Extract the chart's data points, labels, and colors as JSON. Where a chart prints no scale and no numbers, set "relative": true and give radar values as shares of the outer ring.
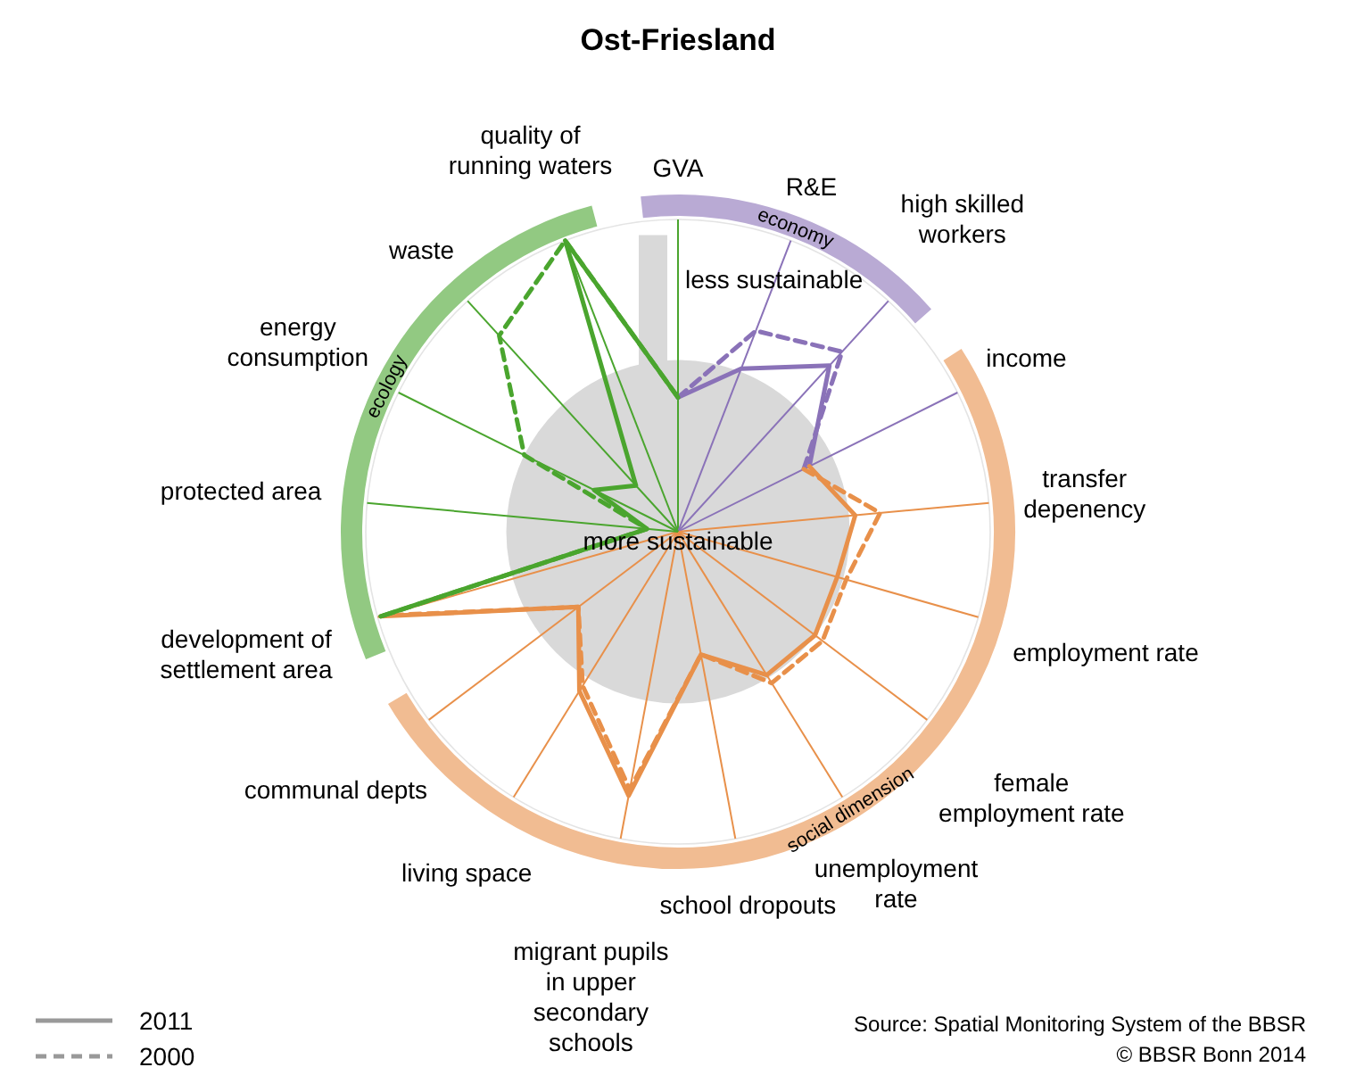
{
  "chart_data": {
    "type": "radar",
    "title": "Ost-Friesland",
    "relative": true,
    "categories": [
      "GVA",
      "R&E",
      "high skilled workers",
      "income",
      "transfer depenency",
      "employment rate",
      "female employment rate",
      "unemployment rate",
      "school dropouts",
      "migrant pupils in upper secondary schools",
      "living space",
      "communal depts",
      "development of settlement area",
      "protected area",
      "energy consumption",
      "waste",
      "quality of running waters"
    ],
    "series": [
      {
        "color": "#8a72b8",
        "line_style": "solid",
        "values": [
          0.43,
          0.56,
          0.72,
          0.47,
          null,
          null,
          null,
          null,
          null,
          null,
          null,
          null,
          null,
          null,
          null,
          null,
          null
        ]
      },
      {
        "color": "#8a72b8",
        "line_style": "dashed",
        "values": [
          0.43,
          0.69,
          0.78,
          0.45,
          null,
          null,
          null,
          null,
          null,
          null,
          null,
          null,
          null,
          null,
          null,
          null,
          null
        ]
      },
      {
        "color": "#e8904a",
        "line_style": "solid",
        "values": [
          null,
          null,
          null,
          0.47,
          0.57,
          0.53,
          0.55,
          0.54,
          0.4,
          0.86,
          0.6,
          0.4,
          0.99,
          null,
          null,
          null,
          null
        ]
      },
      {
        "color": "#e8904a",
        "line_style": "dashed",
        "values": [
          null,
          null,
          null,
          0.45,
          0.65,
          0.56,
          0.58,
          0.57,
          0.4,
          0.84,
          0.58,
          0.4,
          0.98,
          null,
          null,
          null,
          null
        ]
      },
      {
        "color": "#4aa52e",
        "line_style": "solid",
        "values": [
          0.43,
          null,
          null,
          null,
          null,
          null,
          null,
          null,
          null,
          null,
          null,
          null,
          0.99,
          0.1,
          0.3,
          0.2,
          1.0
        ]
      },
      {
        "color": "#4aa52e",
        "line_style": "dashed",
        "values": [
          0.43,
          null,
          null,
          null,
          null,
          null,
          null,
          null,
          null,
          null,
          null,
          null,
          0.98,
          0.1,
          0.55,
          0.85,
          1.0
        ]
      }
    ],
    "annotations": [
      "less sustainable",
      "more sustainable",
      "economy",
      "social dimension",
      "ecology",
      "2011",
      "2000",
      "Source: Spatial Monitoring System of the BBSR",
      "© BBSR Bonn 2014"
    ]
  }
}
